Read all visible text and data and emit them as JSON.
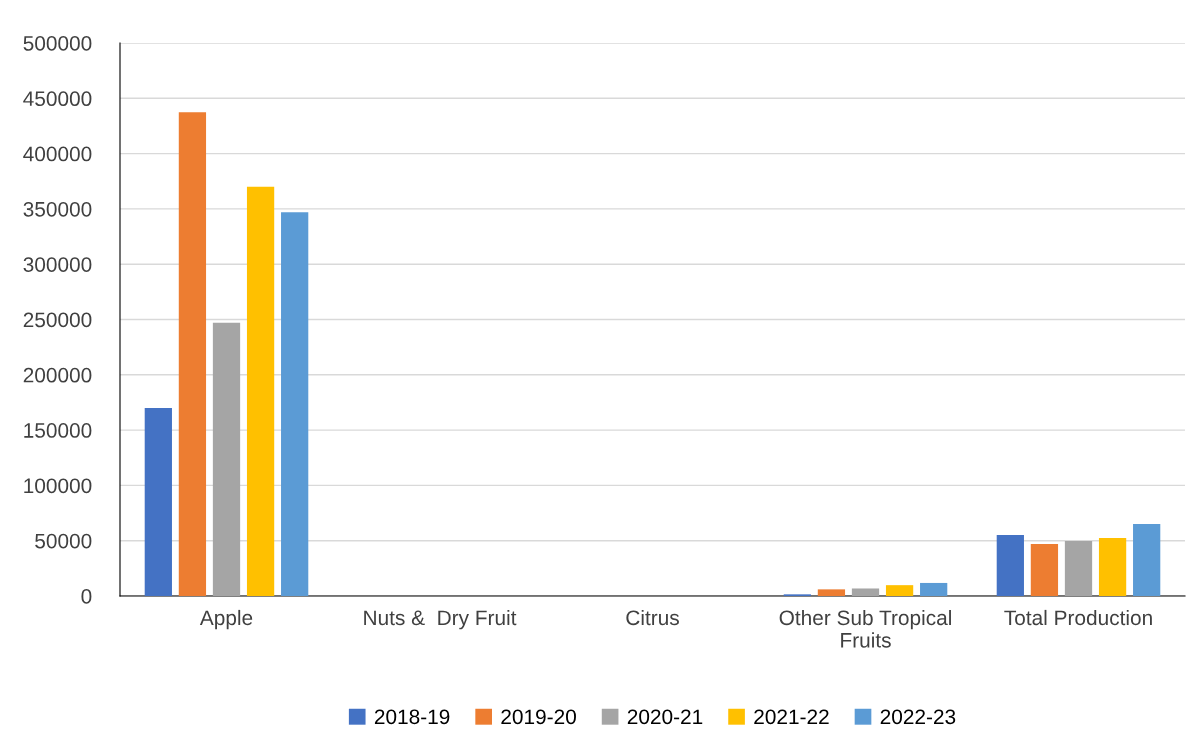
{
  "chart_data": {
    "type": "bar",
    "categories": [
      "Apple",
      "Nuts &  Dry Fruit",
      "Citrus",
      "Other Sub Tropical\nFruits",
      "Total Production"
    ],
    "series": [
      {
        "name": "2018-19",
        "color": "#4472c4",
        "values": [
          170000,
          0,
          0,
          1500,
          55200
        ]
      },
      {
        "name": "2019-20",
        "color": "#ed7d31",
        "values": [
          437500,
          0,
          0,
          6000,
          47000
        ]
      },
      {
        "name": "2020-21",
        "color": "#a5a5a5",
        "values": [
          247000,
          0,
          0,
          6800,
          49700
        ]
      },
      {
        "name": "2021-22",
        "color": "#ffc000",
        "values": [
          370000,
          0,
          0,
          9800,
          52400
        ]
      },
      {
        "name": "2022-23",
        "color": "#5b9bd5",
        "values": [
          347000,
          0,
          0,
          11800,
          65100
        ]
      }
    ],
    "ylim": [
      0,
      500000
    ],
    "yticks": [
      0,
      50000,
      100000,
      150000,
      200000,
      250000,
      300000,
      350000,
      400000,
      450000,
      500000
    ],
    "grid": "y",
    "legend": "bottom"
  }
}
